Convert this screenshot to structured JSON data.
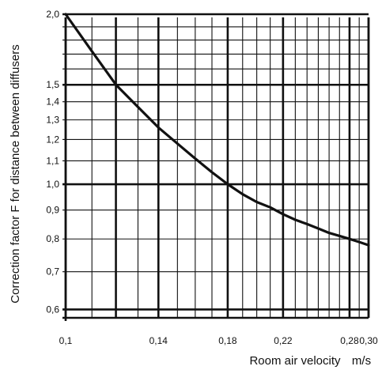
{
  "chart_data": {
    "type": "line",
    "title": "",
    "xlabel": "Room air velocity",
    "xunit": "m/s",
    "ylabel": "Correction factor F for distance between diffusers",
    "x_scale": "log",
    "y_scale": "log",
    "xlim": [
      0.1,
      0.3
    ],
    "ylim": [
      0.58,
      2.0
    ],
    "x_ticks": [
      {
        "value": 0.1,
        "label": "0,1"
      },
      {
        "value": 0.14,
        "label": "0,14"
      },
      {
        "value": 0.18,
        "label": "0,18"
      },
      {
        "value": 0.22,
        "label": "0,22"
      },
      {
        "value": 0.28,
        "label": "0,28"
      },
      {
        "value": 0.3,
        "label": "0,30"
      }
    ],
    "x_grid": [
      0.1,
      0.11,
      0.12,
      0.13,
      0.14,
      0.15,
      0.16,
      0.17,
      0.18,
      0.19,
      0.2,
      0.21,
      0.22,
      0.23,
      0.24,
      0.25,
      0.26,
      0.27,
      0.28,
      0.29,
      0.3
    ],
    "x_grid_major": [
      0.1,
      0.12,
      0.14,
      0.18,
      0.22,
      0.28,
      0.3
    ],
    "y_ticks": [
      {
        "value": 2.0,
        "label": "2,0"
      },
      {
        "value": 1.5,
        "label": "1,5"
      },
      {
        "value": 1.4,
        "label": "1,4"
      },
      {
        "value": 1.3,
        "label": "1,3"
      },
      {
        "value": 1.2,
        "label": "1,2"
      },
      {
        "value": 1.1,
        "label": "1,1"
      },
      {
        "value": 1.0,
        "label": "1,0"
      },
      {
        "value": 0.9,
        "label": "0,9"
      },
      {
        "value": 0.8,
        "label": "0,8"
      },
      {
        "value": 0.7,
        "label": "0,7"
      },
      {
        "value": 0.6,
        "label": "0,6"
      }
    ],
    "y_grid": [
      2.0,
      1.9,
      1.8,
      1.7,
      1.6,
      1.5,
      1.4,
      1.3,
      1.2,
      1.1,
      1.0,
      0.9,
      0.8,
      0.7,
      0.6
    ],
    "y_grid_major": [
      2.0,
      1.5,
      1.0,
      0.6
    ],
    "grid": true,
    "series": [
      {
        "x": [
          0.1,
          0.11,
          0.12,
          0.13,
          0.14,
          0.15,
          0.16,
          0.17,
          0.18,
          0.19,
          0.2,
          0.21,
          0.22,
          0.23,
          0.24,
          0.25,
          0.26,
          0.27,
          0.28,
          0.29,
          0.3
        ],
        "y": [
          2.0,
          1.72,
          1.5,
          1.37,
          1.26,
          1.18,
          1.11,
          1.05,
          1.0,
          0.96,
          0.93,
          0.91,
          0.885,
          0.865,
          0.85,
          0.835,
          0.82,
          0.81,
          0.8,
          0.79,
          0.78
        ],
        "color": "#111111"
      }
    ]
  }
}
